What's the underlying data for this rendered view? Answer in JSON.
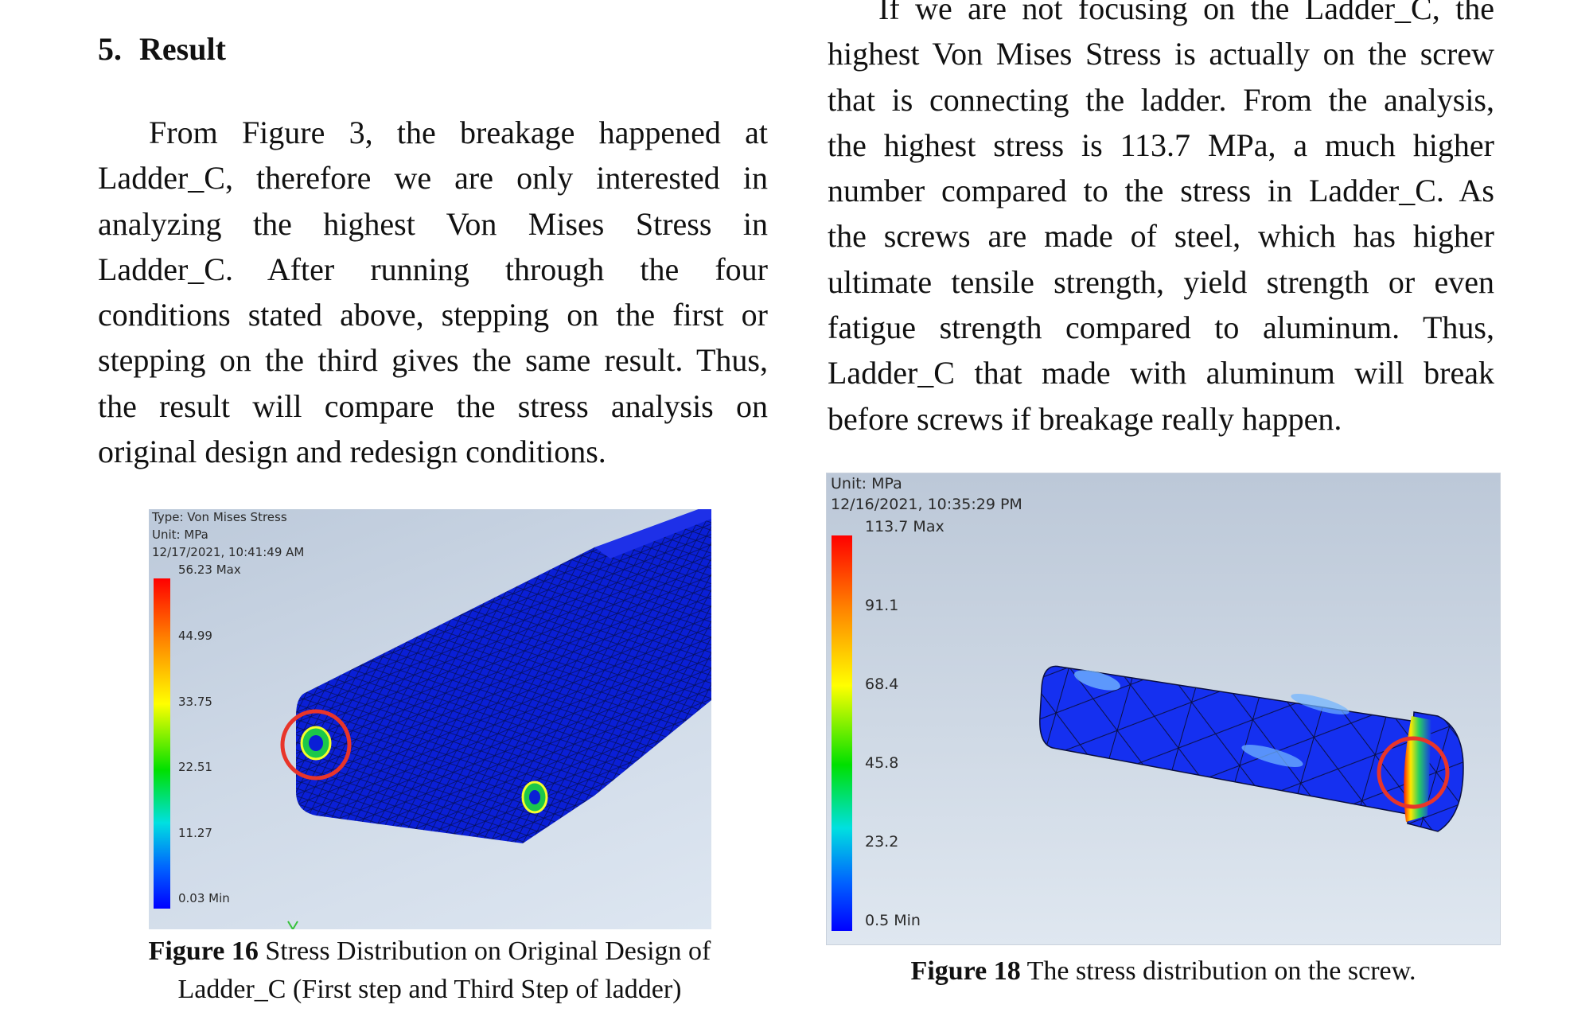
{
  "section": {
    "number": "5.",
    "title": "Result"
  },
  "left_paragraph": [
    "From Figure 3, the breakage happened at",
    "Ladder_C, therefore we are only interested in",
    "analyzing the highest Von Mises Stress in",
    "Ladder_C. After running through the four",
    "conditions stated above, stepping on the first or",
    "stepping on the third gives the same result. Thus,",
    "the result will compare the stress analysis on",
    "original design and redesign conditions."
  ],
  "right_paragraph": [
    "If we are not focusing on the Ladder_C, the",
    "highest Von Mises Stress is actually on the screw",
    "that is connecting the ladder. From the analysis,",
    "the highest stress is 113.7 MPa, a much higher",
    "number compared to the stress in Ladder_C. As",
    "the screws are made of steel, which has higher",
    "ultimate tensile strength, yield strength or even",
    "fatigue strength compared to aluminum. Thus,",
    "Ladder_C that made with aluminum will break",
    "before screws if breakage really happen."
  ],
  "figure16": {
    "type_label": "Type: Von Mises Stress",
    "unit_label": "Unit: MPa",
    "timestamp": "12/17/2021, 10:41:49 AM",
    "max_label": "56.23 Max",
    "ticks": [
      "44.99",
      "33.75",
      "22.51",
      "11.27"
    ],
    "min_label": "0.03 Min",
    "caption_bold": "Figure 16",
    "caption_line1": " Stress Distribution on Original Design of",
    "caption_line2": "Ladder_C (First step and Third Step of ladder)"
  },
  "figure18": {
    "unit_label": "Unit: MPa",
    "timestamp": "12/16/2021, 10:35:29 PM",
    "max_label": "113.7 Max",
    "ticks": [
      "91.1",
      "68.4",
      "45.8",
      "23.2"
    ],
    "min_label": "0.5 Min",
    "caption_bold": "Figure 18",
    "caption_text": " The stress distribution on the screw."
  },
  "colors": {
    "highlight_circle": "#e8352a",
    "mesh_blue": "#0a1fd6",
    "colorbar_top": "#ff0000",
    "colorbar_bottom": "#0000ff"
  }
}
